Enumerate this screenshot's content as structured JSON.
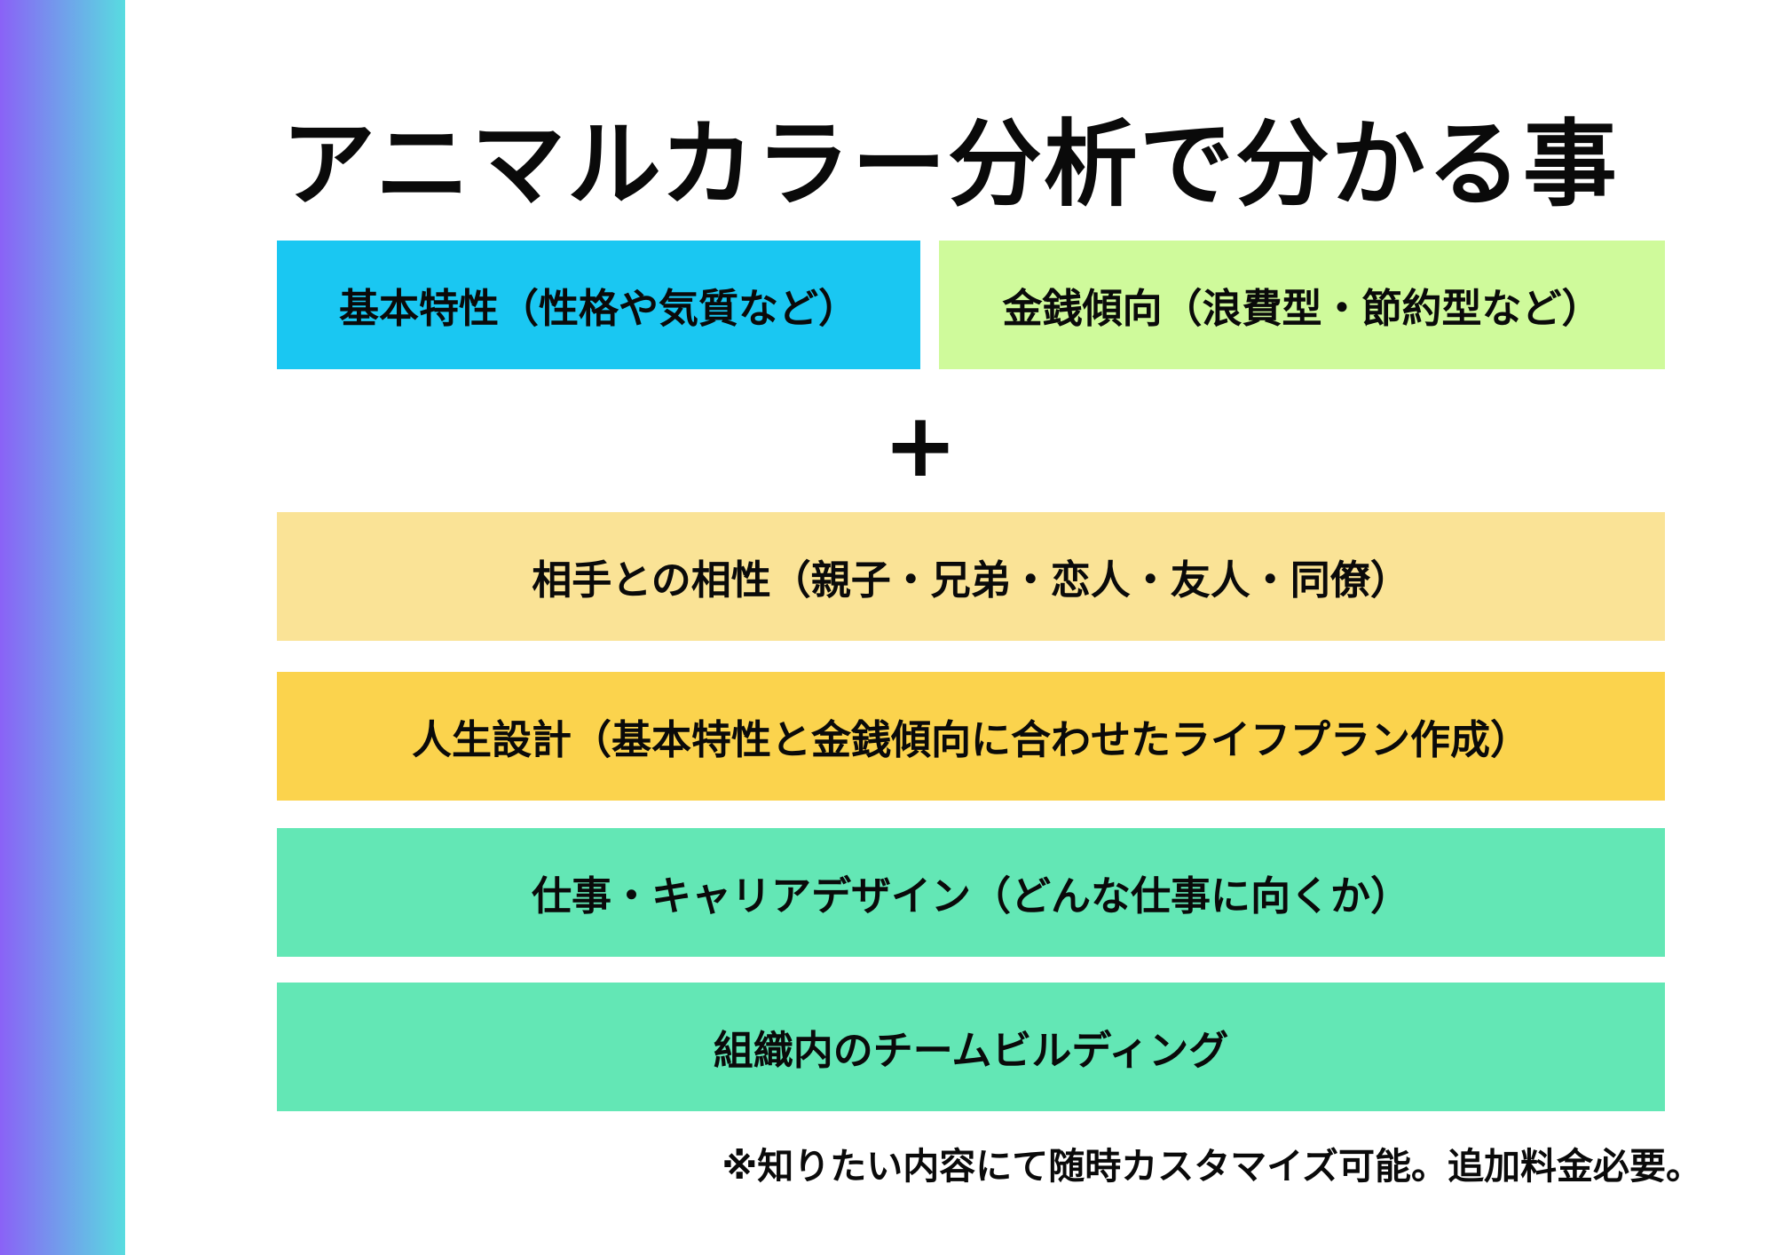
{
  "page": {
    "background": "#ffffff",
    "accent_gradient_start": "#8a62f6",
    "accent_gradient_end": "#58dce0"
  },
  "title": "アニマルカラー分析で分かる事",
  "plus_sign": "+",
  "boxes": [
    {
      "id": "basic-traits",
      "label": "基本特性（性格や気質など）",
      "color": "#1ac7f2"
    },
    {
      "id": "money-tendency",
      "label": "金銭傾向（浪費型・節約型など）",
      "color": "#cffa9b"
    },
    {
      "id": "compatibility",
      "label": "相手との相性（親子・兄弟・恋人・友人・同僚）",
      "color": "#fae396"
    },
    {
      "id": "life-design",
      "label": "人生設計（基本特性と金銭傾向に合わせたライフプラン作成）",
      "color": "#fbd34d"
    },
    {
      "id": "career-design",
      "label": "仕事・キャリアデザイン（どんな仕事に向くか）",
      "color": "#63e7b5"
    },
    {
      "id": "team-building",
      "label": "組織内のチームビルディング",
      "color": "#63e7b5"
    }
  ],
  "footnote": "※知りたい内容にて随時カスタマイズ可能。追加料金必要。"
}
